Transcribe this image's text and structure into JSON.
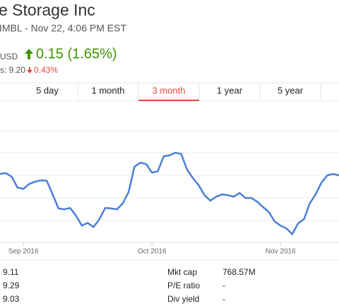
{
  "header": {
    "title": "e Storage Inc",
    "subtitle": "IMBL - Nov 22, 4:06 PM EST",
    "currency": "USD",
    "change": "0.15 (1.65%)",
    "prev_label": "s: 9.20",
    "prev_change": "0.43%"
  },
  "tabs": [
    "5 day",
    "1 month",
    "3 month",
    "1 year",
    "5 year"
  ],
  "selected_tab": 2,
  "chart_data": {
    "type": "line",
    "color": "#4a7fd6",
    "values": [
      9.28,
      9.3,
      9.22,
      8.98,
      8.95,
      9.06,
      9.11,
      9.14,
      9.13,
      8.83,
      8.52,
      8.5,
      8.53,
      8.36,
      8.14,
      8.2,
      8.11,
      8.28,
      8.53,
      8.52,
      8.5,
      8.63,
      8.88,
      9.44,
      9.53,
      9.5,
      9.31,
      9.34,
      9.67,
      9.69,
      9.75,
      9.72,
      9.38,
      9.19,
      9.03,
      8.81,
      8.69,
      8.78,
      8.83,
      8.81,
      8.78,
      8.86,
      8.75,
      8.75,
      8.67,
      8.55,
      8.44,
      8.23,
      8.14,
      8.08,
      7.95,
      8.19,
      8.28,
      8.63,
      8.83,
      9.09,
      9.25,
      9.28,
      9.25
    ],
    "xlim": [
      0,
      58
    ],
    "xticks": [
      {
        "value": 4,
        "label": "Sep 2016"
      },
      {
        "value": 26,
        "label": "Oct 2016"
      },
      {
        "value": 48,
        "label": "Nov 2016"
      }
    ],
    "ylim": [
      7.77,
      10.78
    ],
    "grid": true
  },
  "stats": {
    "left": [
      "9.11",
      "9.29",
      "9.03"
    ],
    "right": [
      [
        "Mkt cap",
        "768.57M"
      ],
      [
        "P/E ratio",
        "-"
      ],
      [
        "Div yield",
        "-"
      ]
    ]
  }
}
